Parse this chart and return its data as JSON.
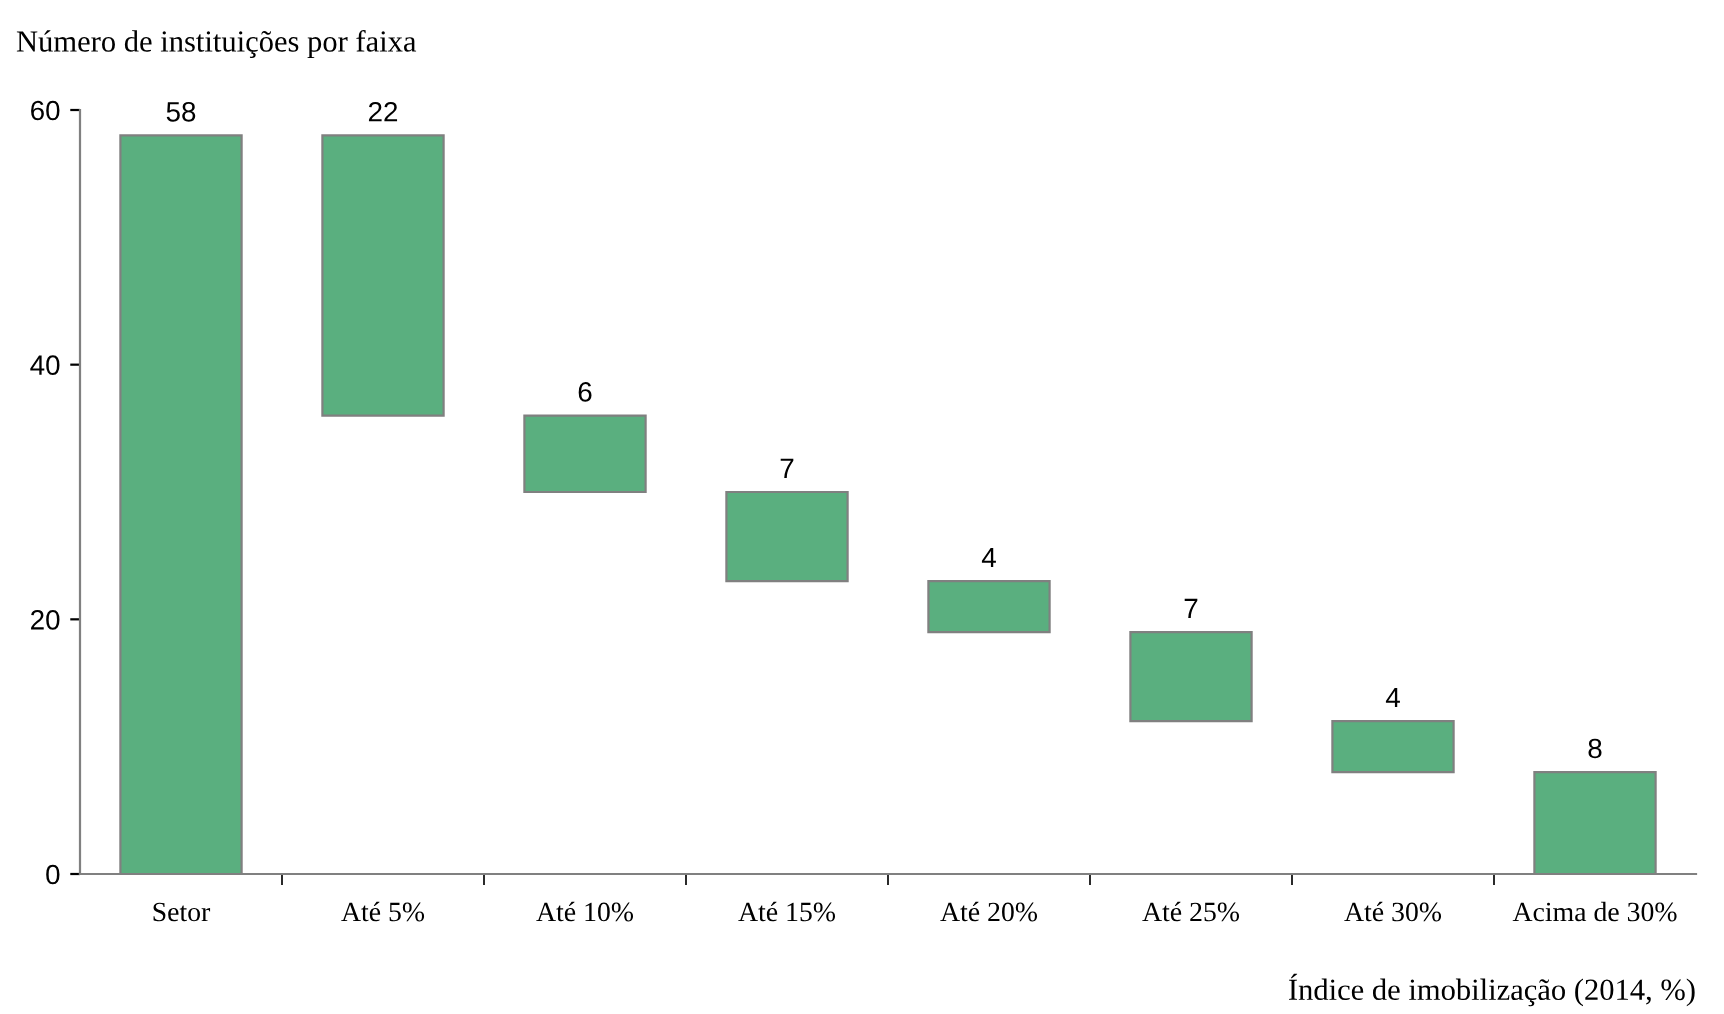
{
  "chart_data": {
    "type": "bar",
    "ylabel": "Número de instituições por faixa",
    "xlabel": "Índice de imobilização (2014, %)",
    "categories": [
      "Setor",
      "Até 5%",
      "Até 10%",
      "Até 15%",
      "Até 20%",
      "Até 25%",
      "Até 30%",
      "Acima de 30%"
    ],
    "values": [
      58,
      22,
      6,
      7,
      4,
      7,
      4,
      8
    ],
    "base": [
      0,
      36,
      30,
      23,
      19,
      12,
      8,
      0
    ],
    "color": "#5aaf7f",
    "ylim": [
      0,
      60
    ],
    "yticks": [
      0,
      20,
      40,
      60
    ],
    "data_labels": true,
    "grid": false,
    "legend": false
  }
}
